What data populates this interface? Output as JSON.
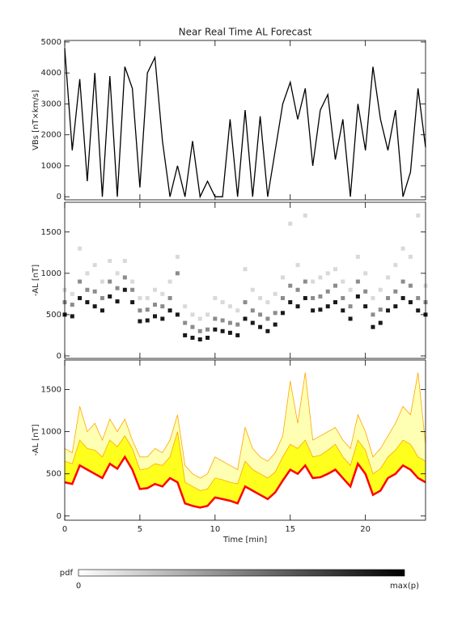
{
  "chart_data": [
    {
      "type": "line",
      "title": "Near Real Time AL Forecast",
      "ylabel": "VBs [nT×km/s]",
      "x": [
        0,
        0.5,
        1,
        1.5,
        2,
        2.5,
        3,
        3.5,
        4,
        4.5,
        5,
        5.5,
        6,
        6.5,
        7,
        7.5,
        8,
        8.5,
        9,
        9.5,
        10,
        10.5,
        11,
        11.5,
        12,
        12.5,
        13,
        13.5,
        14,
        14.5,
        15,
        15.5,
        16,
        16.5,
        17,
        17.5,
        18,
        18.5,
        19,
        19.5,
        20,
        20.5,
        21,
        21.5,
        22,
        22.5,
        23,
        23.5,
        24
      ],
      "series": [
        {
          "color": "#000000",
          "values": [
            4800,
            1500,
            3800,
            500,
            4000,
            0,
            3900,
            0,
            4200,
            3500,
            300,
            4000,
            4500,
            1800,
            0,
            1000,
            0,
            1800,
            0,
            500,
            0,
            0,
            2500,
            0,
            2800,
            0,
            2600,
            0,
            1500,
            3000,
            3700,
            2500,
            3500,
            1000,
            2800,
            3300,
            1200,
            2500,
            0,
            3000,
            1500,
            4200,
            2500,
            1500,
            2800,
            0,
            800,
            3500,
            1600
          ]
        }
      ],
      "xlim": [
        0,
        24
      ],
      "xticks": [
        0,
        5,
        10,
        15,
        20
      ],
      "ylim": [
        -100,
        5050
      ],
      "yticks": [
        0,
        1000,
        2000,
        3000,
        4000,
        5000
      ]
    },
    {
      "type": "scatter",
      "ylabel": "-AL [nT]",
      "x": [
        0,
        0.5,
        1,
        1.5,
        2,
        2.5,
        3,
        3.5,
        4,
        4.5,
        5,
        5.5,
        6,
        6.5,
        7,
        7.5,
        8,
        8.5,
        9,
        9.5,
        10,
        10.5,
        11,
        11.5,
        12,
        12.5,
        13,
        13.5,
        14,
        14.5,
        15,
        15.5,
        16,
        16.5,
        17,
        17.5,
        18,
        18.5,
        19,
        19.5,
        20,
        20.5,
        21,
        21.5,
        22,
        22.5,
        23,
        23.5,
        24
      ],
      "series": [
        {
          "p": 0.9,
          "values": [
            500,
            480,
            700,
            650,
            600,
            550,
            720,
            660,
            800,
            650,
            420,
            430,
            480,
            450,
            550,
            500,
            250,
            220,
            200,
            220,
            320,
            300,
            280,
            250,
            450,
            400,
            350,
            300,
            380,
            520,
            650,
            600,
            700,
            550,
            560,
            600,
            650,
            550,
            450,
            720,
            600,
            350,
            400,
            550,
            600,
            700,
            650,
            550,
            500
          ]
        },
        {
          "p": 0.45,
          "values": [
            650,
            620,
            900,
            800,
            780,
            700,
            900,
            820,
            950,
            800,
            550,
            560,
            620,
            600,
            700,
            1000,
            400,
            350,
            300,
            320,
            450,
            430,
            400,
            380,
            650,
            550,
            500,
            450,
            520,
            700,
            850,
            800,
            900,
            700,
            720,
            780,
            850,
            700,
            600,
            900,
            780,
            500,
            560,
            700,
            780,
            900,
            850,
            700,
            650
          ]
        },
        {
          "p": 0.15,
          "values": [
            800,
            750,
            1300,
            1000,
            1100,
            900,
            1150,
            1000,
            1150,
            900,
            700,
            700,
            800,
            750,
            900,
            1200,
            600,
            500,
            450,
            500,
            700,
            650,
            600,
            550,
            1050,
            800,
            700,
            650,
            750,
            950,
            1600,
            1100,
            1700,
            900,
            950,
            1000,
            1050,
            900,
            800,
            1200,
            1000,
            700,
            800,
            950,
            1100,
            1300,
            1200,
            1700,
            850
          ]
        }
      ],
      "xlim": [
        0,
        24
      ],
      "xticks": [
        0,
        5,
        10,
        15,
        20
      ],
      "ylim": [
        -30,
        1860
      ],
      "yticks": [
        0,
        500,
        1000,
        1500
      ]
    },
    {
      "type": "area",
      "ylabel": "-AL [nT]",
      "xlabel": "Time [min]",
      "x": [
        0,
        0.5,
        1,
        1.5,
        2,
        2.5,
        3,
        3.5,
        4,
        4.5,
        5,
        5.5,
        6,
        6.5,
        7,
        7.5,
        8,
        8.5,
        9,
        9.5,
        10,
        10.5,
        11,
        11.5,
        12,
        12.5,
        13,
        13.5,
        14,
        14.5,
        15,
        15.5,
        16,
        16.5,
        17,
        17.5,
        18,
        18.5,
        19,
        19.5,
        20,
        20.5,
        21,
        21.5,
        22,
        22.5,
        23,
        23.5,
        24
      ],
      "series": [
        {
          "color": "#ffa500",
          "fill": "#ffffb4",
          "values": [
            800,
            750,
            1300,
            1000,
            1100,
            900,
            1150,
            1000,
            1150,
            900,
            700,
            700,
            800,
            750,
            900,
            1200,
            600,
            500,
            450,
            500,
            700,
            650,
            600,
            550,
            1050,
            800,
            700,
            650,
            750,
            950,
            1600,
            1100,
            1700,
            900,
            950,
            1000,
            1050,
            900,
            800,
            1200,
            1000,
            700,
            800,
            950,
            1100,
            1300,
            1200,
            1700,
            850
          ]
        },
        {
          "color": "#ffa500",
          "fill": "#ffff1e",
          "values": [
            650,
            620,
            900,
            800,
            780,
            700,
            900,
            820,
            950,
            800,
            550,
            560,
            620,
            600,
            700,
            1000,
            400,
            350,
            300,
            320,
            450,
            430,
            400,
            380,
            650,
            550,
            500,
            450,
            520,
            700,
            850,
            800,
            900,
            700,
            720,
            780,
            850,
            700,
            600,
            900,
            780,
            500,
            560,
            700,
            780,
            900,
            850,
            700,
            650
          ]
        },
        {
          "color": "#ff0000",
          "fill": "#ffffff",
          "values": [
            400,
            380,
            600,
            550,
            500,
            450,
            620,
            560,
            700,
            550,
            320,
            330,
            380,
            350,
            450,
            400,
            150,
            120,
            100,
            120,
            220,
            200,
            180,
            150,
            350,
            300,
            250,
            200,
            280,
            420,
            550,
            500,
            600,
            450,
            460,
            500,
            550,
            450,
            350,
            620,
            500,
            250,
            300,
            450,
            500,
            600,
            550,
            450,
            400
          ]
        }
      ],
      "xlim": [
        0,
        24
      ],
      "xticks": [
        0,
        5,
        10,
        15,
        20
      ],
      "ylim": [
        -50,
        1850
      ],
      "yticks": [
        0,
        500,
        1000,
        1500
      ]
    }
  ],
  "colorbar": {
    "label": "pdf",
    "min_label": "0",
    "max_label": "max(p)"
  }
}
